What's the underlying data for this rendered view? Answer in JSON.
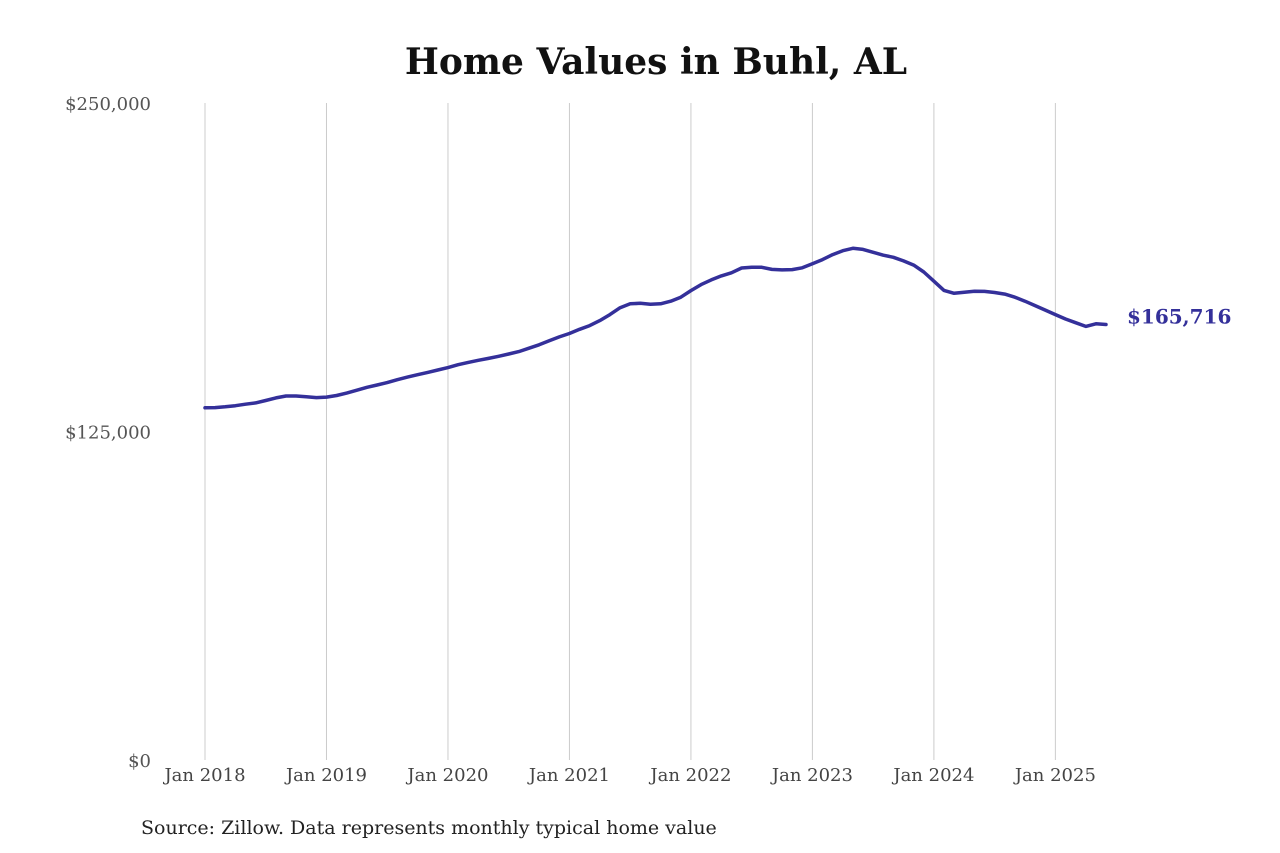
{
  "source_note": "Source: Zillow. Data represents monthly typical home value",
  "colors": {
    "line": "#34309a",
    "grid": "#cccccc",
    "background": "#ffffff"
  },
  "chart_data": {
    "type": "line",
    "title": "Home Values in Buhl, AL",
    "xlabel": "",
    "ylabel": "",
    "ylim": [
      0,
      250000
    ],
    "xlim": [
      "2018-01",
      "2025-06"
    ],
    "grid": {
      "vertical": true,
      "horizontal": false
    },
    "legend": "none",
    "y_ticks": [
      {
        "value": 0,
        "label": "$0"
      },
      {
        "value": 125000,
        "label": "$125,000"
      },
      {
        "value": 250000,
        "label": "$250,000"
      }
    ],
    "x_ticks": [
      {
        "value": "2018-01",
        "label": "Jan 2018"
      },
      {
        "value": "2019-01",
        "label": "Jan 2019"
      },
      {
        "value": "2020-01",
        "label": "Jan 2020"
      },
      {
        "value": "2021-01",
        "label": "Jan 2021"
      },
      {
        "value": "2022-01",
        "label": "Jan 2022"
      },
      {
        "value": "2023-01",
        "label": "Jan 2023"
      },
      {
        "value": "2024-01",
        "label": "Jan 2024"
      },
      {
        "value": "2025-01",
        "label": "Jan 2025"
      }
    ],
    "end_label": "$165,716",
    "series": [
      {
        "x": [
          "2018-01",
          "2018-02",
          "2018-03",
          "2018-04",
          "2018-05",
          "2018-06",
          "2018-07",
          "2018-08",
          "2018-09",
          "2018-10",
          "2018-11",
          "2018-12",
          "2019-01",
          "2019-02",
          "2019-03",
          "2019-04",
          "2019-05",
          "2019-06",
          "2019-07",
          "2019-08",
          "2019-09",
          "2019-10",
          "2019-11",
          "2019-12",
          "2020-01",
          "2020-02",
          "2020-03",
          "2020-04",
          "2020-05",
          "2020-06",
          "2020-07",
          "2020-08",
          "2020-09",
          "2020-10",
          "2020-11",
          "2020-12",
          "2021-01",
          "2021-02",
          "2021-03",
          "2021-04",
          "2021-05",
          "2021-06",
          "2021-07",
          "2021-08",
          "2021-09",
          "2021-10",
          "2021-11",
          "2021-12",
          "2022-01",
          "2022-02",
          "2022-03",
          "2022-04",
          "2022-05",
          "2022-06",
          "2022-07",
          "2022-08",
          "2022-09",
          "2022-10",
          "2022-11",
          "2022-12",
          "2023-01",
          "2023-02",
          "2023-03",
          "2023-04",
          "2023-05",
          "2023-06",
          "2023-07",
          "2023-08",
          "2023-09",
          "2023-10",
          "2023-11",
          "2023-12",
          "2024-01",
          "2024-02",
          "2024-03",
          "2024-04",
          "2024-05",
          "2024-06",
          "2024-07",
          "2024-08",
          "2024-09",
          "2024-10",
          "2024-11",
          "2024-12",
          "2025-01",
          "2025-02",
          "2025-03",
          "2025-04",
          "2025-05",
          "2025-06"
        ],
        "values": [
          134000,
          134100,
          134400,
          134800,
          135400,
          135900,
          136800,
          137800,
          138500,
          138500,
          138200,
          137900,
          138100,
          138700,
          139600,
          140700,
          141800,
          142700,
          143600,
          144700,
          145700,
          146600,
          147500,
          148400,
          149300,
          150400,
          151300,
          152100,
          152800,
          153600,
          154500,
          155400,
          156700,
          158000,
          159500,
          161000,
          162300,
          163900,
          165300,
          167200,
          169500,
          172100,
          173600,
          173800,
          173400,
          173600,
          174600,
          176100,
          178600,
          180900,
          182700,
          184200,
          185400,
          187200,
          187500,
          187500,
          186700,
          186500,
          186600,
          187300,
          188800,
          190400,
          192300,
          193800,
          194700,
          194300,
          193200,
          192100,
          191300,
          189900,
          188300,
          185700,
          182200,
          178700,
          177600,
          178000,
          178400,
          178300,
          177900,
          177300,
          176100,
          174600,
          172900,
          171200,
          169500,
          167800,
          166400,
          165000,
          166000,
          165716
        ]
      }
    ]
  }
}
